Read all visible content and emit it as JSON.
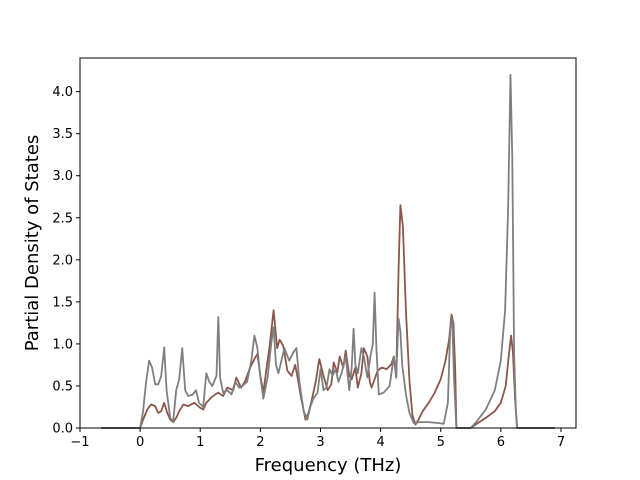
{
  "chart_data": {
    "type": "line",
    "title": "",
    "xlabel": "Frequency (THz)",
    "ylabel": "Partial Density of States",
    "xlim": [
      -1.0,
      7.25
    ],
    "ylim": [
      0.0,
      4.4
    ],
    "xticks": [
      -1,
      0,
      1,
      2,
      3,
      4,
      5,
      6,
      7
    ],
    "xtick_labels": [
      "−1",
      "0",
      "1",
      "2",
      "3",
      "4",
      "5",
      "6",
      "7"
    ],
    "yticks": [
      0.0,
      0.5,
      1.0,
      1.5,
      2.0,
      2.5,
      3.0,
      3.5,
      4.0
    ],
    "ytick_labels": [
      "0.0",
      "0.5",
      "1.0",
      "1.5",
      "2.0",
      "2.5",
      "3.0",
      "3.5",
      "4.0"
    ],
    "grid": false,
    "legend": "none",
    "series": [
      {
        "color": "#8c564b",
        "points": [
          [
            -0.65,
            0
          ],
          [
            0.0,
            0
          ],
          [
            0.05,
            0.1
          ],
          [
            0.12,
            0.22
          ],
          [
            0.18,
            0.28
          ],
          [
            0.25,
            0.26
          ],
          [
            0.3,
            0.18
          ],
          [
            0.35,
            0.2
          ],
          [
            0.4,
            0.3
          ],
          [
            0.45,
            0.18
          ],
          [
            0.5,
            0.1
          ],
          [
            0.55,
            0.07
          ],
          [
            0.6,
            0.12
          ],
          [
            0.65,
            0.2
          ],
          [
            0.72,
            0.28
          ],
          [
            0.8,
            0.26
          ],
          [
            0.9,
            0.3
          ],
          [
            1.0,
            0.24
          ],
          [
            1.05,
            0.22
          ],
          [
            1.1,
            0.3
          ],
          [
            1.18,
            0.36
          ],
          [
            1.25,
            0.4
          ],
          [
            1.3,
            0.42
          ],
          [
            1.38,
            0.38
          ],
          [
            1.45,
            0.48
          ],
          [
            1.55,
            0.45
          ],
          [
            1.6,
            0.6
          ],
          [
            1.68,
            0.48
          ],
          [
            1.75,
            0.56
          ],
          [
            1.82,
            0.7
          ],
          [
            1.9,
            0.82
          ],
          [
            1.95,
            0.88
          ],
          [
            2.0,
            0.62
          ],
          [
            2.05,
            0.42
          ],
          [
            2.1,
            0.7
          ],
          [
            2.15,
            0.95
          ],
          [
            2.22,
            1.4
          ],
          [
            2.28,
            0.95
          ],
          [
            2.32,
            1.05
          ],
          [
            2.38,
            0.98
          ],
          [
            2.45,
            0.68
          ],
          [
            2.52,
            0.62
          ],
          [
            2.58,
            0.75
          ],
          [
            2.62,
            0.6
          ],
          [
            2.68,
            0.35
          ],
          [
            2.75,
            0.1
          ],
          [
            2.8,
            0.18
          ],
          [
            2.85,
            0.32
          ],
          [
            2.92,
            0.55
          ],
          [
            2.98,
            0.82
          ],
          [
            3.05,
            0.62
          ],
          [
            3.12,
            0.45
          ],
          [
            3.18,
            0.52
          ],
          [
            3.22,
            0.78
          ],
          [
            3.28,
            0.66
          ],
          [
            3.32,
            0.85
          ],
          [
            3.38,
            0.72
          ],
          [
            3.42,
            0.92
          ],
          [
            3.48,
            0.62
          ],
          [
            3.52,
            0.58
          ],
          [
            3.58,
            0.72
          ],
          [
            3.62,
            0.48
          ],
          [
            3.68,
            0.65
          ],
          [
            3.72,
            0.95
          ],
          [
            3.78,
            0.85
          ],
          [
            3.82,
            0.55
          ],
          [
            3.85,
            0.48
          ],
          [
            3.9,
            0.58
          ],
          [
            3.95,
            0.68
          ],
          [
            4.02,
            0.72
          ],
          [
            4.1,
            0.7
          ],
          [
            4.18,
            0.76
          ],
          [
            4.22,
            0.85
          ],
          [
            4.26,
            0.6
          ],
          [
            4.3,
            1.9
          ],
          [
            4.33,
            2.65
          ],
          [
            4.37,
            2.4
          ],
          [
            4.42,
            1.4
          ],
          [
            4.48,
            0.55
          ],
          [
            4.53,
            0.15
          ],
          [
            4.58,
            0.04
          ],
          [
            4.63,
            0.1
          ],
          [
            4.7,
            0.2
          ],
          [
            4.8,
            0.3
          ],
          [
            4.9,
            0.42
          ],
          [
            5.0,
            0.58
          ],
          [
            5.08,
            0.8
          ],
          [
            5.14,
            1.05
          ],
          [
            5.18,
            1.35
          ],
          [
            5.21,
            1.25
          ],
          [
            5.24,
            0.7
          ],
          [
            5.26,
            0.0
          ],
          [
            5.5,
            0.0
          ],
          [
            5.6,
            0.05
          ],
          [
            5.75,
            0.12
          ],
          [
            5.9,
            0.2
          ],
          [
            6.0,
            0.3
          ],
          [
            6.08,
            0.5
          ],
          [
            6.13,
            0.85
          ],
          [
            6.17,
            1.1
          ],
          [
            6.2,
            0.9
          ],
          [
            6.24,
            0.3
          ],
          [
            6.27,
            0.0
          ],
          [
            6.9,
            0.0
          ]
        ]
      },
      {
        "color": "#7f7f7f",
        "points": [
          [
            -0.65,
            0
          ],
          [
            0.0,
            0
          ],
          [
            0.05,
            0.2
          ],
          [
            0.1,
            0.55
          ],
          [
            0.15,
            0.8
          ],
          [
            0.2,
            0.72
          ],
          [
            0.25,
            0.52
          ],
          [
            0.3,
            0.52
          ],
          [
            0.35,
            0.62
          ],
          [
            0.4,
            0.96
          ],
          [
            0.44,
            0.45
          ],
          [
            0.5,
            0.12
          ],
          [
            0.55,
            0.08
          ],
          [
            0.6,
            0.45
          ],
          [
            0.65,
            0.58
          ],
          [
            0.7,
            0.95
          ],
          [
            0.75,
            0.45
          ],
          [
            0.8,
            0.38
          ],
          [
            0.88,
            0.4
          ],
          [
            0.93,
            0.45
          ],
          [
            0.98,
            0.3
          ],
          [
            1.05,
            0.25
          ],
          [
            1.1,
            0.65
          ],
          [
            1.15,
            0.55
          ],
          [
            1.2,
            0.5
          ],
          [
            1.27,
            0.62
          ],
          [
            1.3,
            1.32
          ],
          [
            1.33,
            0.6
          ],
          [
            1.38,
            0.42
          ],
          [
            1.45,
            0.45
          ],
          [
            1.52,
            0.4
          ],
          [
            1.58,
            0.55
          ],
          [
            1.65,
            0.48
          ],
          [
            1.7,
            0.5
          ],
          [
            1.78,
            0.55
          ],
          [
            1.85,
            0.8
          ],
          [
            1.9,
            1.1
          ],
          [
            1.95,
            0.95
          ],
          [
            2.0,
            0.6
          ],
          [
            2.05,
            0.35
          ],
          [
            2.12,
            0.6
          ],
          [
            2.18,
            1.0
          ],
          [
            2.22,
            1.2
          ],
          [
            2.26,
            0.75
          ],
          [
            2.3,
            0.65
          ],
          [
            2.35,
            0.8
          ],
          [
            2.4,
            0.95
          ],
          [
            2.48,
            0.8
          ],
          [
            2.55,
            0.9
          ],
          [
            2.6,
            0.95
          ],
          [
            2.65,
            0.55
          ],
          [
            2.72,
            0.2
          ],
          [
            2.78,
            0.1
          ],
          [
            2.83,
            0.25
          ],
          [
            2.88,
            0.35
          ],
          [
            2.95,
            0.42
          ],
          [
            3.0,
            0.7
          ],
          [
            3.05,
            0.45
          ],
          [
            3.1,
            0.48
          ],
          [
            3.15,
            0.7
          ],
          [
            3.2,
            0.62
          ],
          [
            3.25,
            0.7
          ],
          [
            3.3,
            0.55
          ],
          [
            3.35,
            0.65
          ],
          [
            3.42,
            0.85
          ],
          [
            3.48,
            0.45
          ],
          [
            3.52,
            0.72
          ],
          [
            3.55,
            1.18
          ],
          [
            3.58,
            0.75
          ],
          [
            3.62,
            0.65
          ],
          [
            3.68,
            0.95
          ],
          [
            3.72,
            0.85
          ],
          [
            3.78,
            0.6
          ],
          [
            3.83,
            0.85
          ],
          [
            3.87,
            1.0
          ],
          [
            3.9,
            1.61
          ],
          [
            3.93,
            0.95
          ],
          [
            3.97,
            0.4
          ],
          [
            4.05,
            0.42
          ],
          [
            4.15,
            0.5
          ],
          [
            4.22,
            0.85
          ],
          [
            4.26,
            0.62
          ],
          [
            4.3,
            1.3
          ],
          [
            4.33,
            1.15
          ],
          [
            4.36,
            0.75
          ],
          [
            4.42,
            0.4
          ],
          [
            4.48,
            0.18
          ],
          [
            4.55,
            0.06
          ],
          [
            4.65,
            0.07
          ],
          [
            4.8,
            0.07
          ],
          [
            4.95,
            0.06
          ],
          [
            5.05,
            0.05
          ],
          [
            5.12,
            0.3
          ],
          [
            5.16,
            1.2
          ],
          [
            5.19,
            1.3
          ],
          [
            5.22,
            0.6
          ],
          [
            5.26,
            0.0
          ],
          [
            5.5,
            0.0
          ],
          [
            5.6,
            0.08
          ],
          [
            5.75,
            0.22
          ],
          [
            5.9,
            0.45
          ],
          [
            6.0,
            0.8
          ],
          [
            6.07,
            1.4
          ],
          [
            6.12,
            2.6
          ],
          [
            6.16,
            4.2
          ],
          [
            6.19,
            3.2
          ],
          [
            6.22,
            0.9
          ],
          [
            6.25,
            0.2
          ],
          [
            6.27,
            0.0
          ],
          [
            6.9,
            0.0
          ]
        ]
      }
    ]
  }
}
